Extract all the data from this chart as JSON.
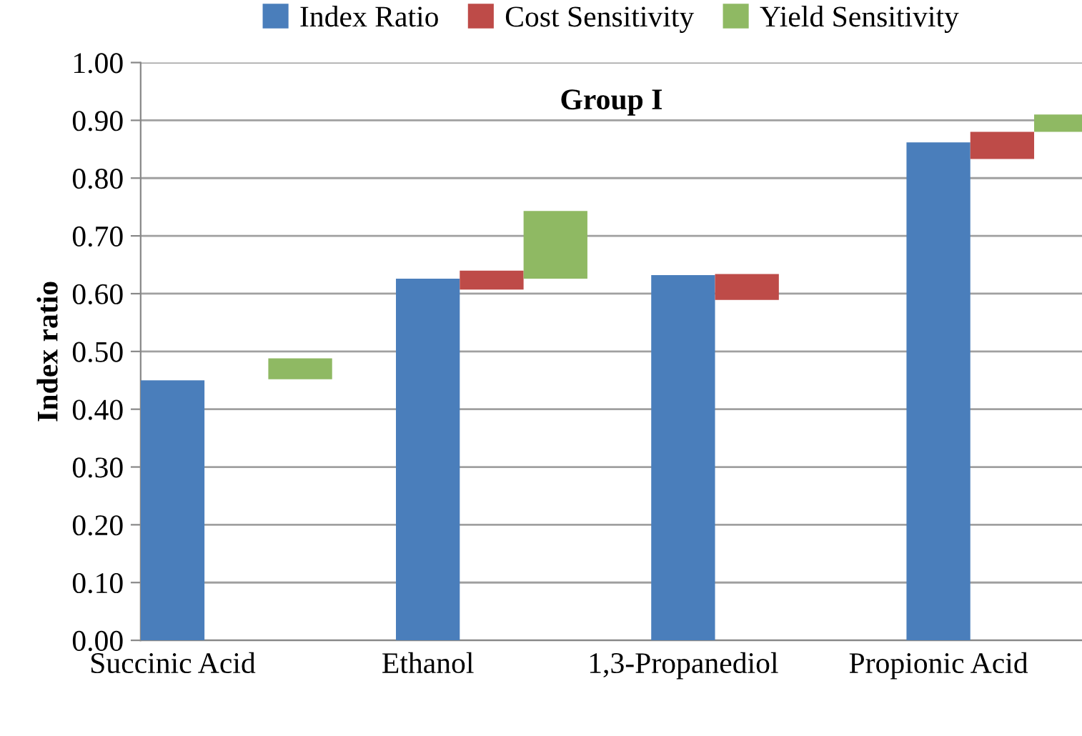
{
  "chart_data": {
    "type": "bar",
    "title": "Group I",
    "ylabel": "Index ratio",
    "categories": [
      "Succinic Acid",
      "Ethanol",
      "1,3-Propanediol",
      "Propionic Acid"
    ],
    "series": [
      {
        "name": "Index Ratio",
        "color": "#4a7ebb",
        "values": [
          0.45,
          0.626,
          0.632,
          0.862
        ]
      },
      {
        "name": "Cost Sensitivity",
        "color": "#be4b48",
        "base": [
          null,
          0.607,
          0.589,
          0.833
        ],
        "values": [
          null,
          0.033,
          0.045,
          0.047
        ]
      },
      {
        "name": "Yield Sensitivity",
        "color": "#8fb963",
        "base": [
          0.452,
          0.626,
          null,
          0.88
        ],
        "values": [
          0.036,
          0.117,
          null,
          0.03
        ]
      }
    ],
    "ylim": [
      0,
      1
    ],
    "yticks": [
      {
        "value": 0,
        "label": "0.00"
      },
      {
        "value": 0.1,
        "label": "0.10"
      },
      {
        "value": 0.2,
        "label": "0.20"
      },
      {
        "value": 0.3,
        "label": "0.30"
      },
      {
        "value": 0.4,
        "label": "0.40"
      },
      {
        "value": 0.5,
        "label": "0.50"
      },
      {
        "value": 0.6,
        "label": "0.60"
      },
      {
        "value": 0.7,
        "label": "0.70"
      },
      {
        "value": 0.8,
        "label": "0.80"
      },
      {
        "value": 0.9,
        "label": "0.90"
      },
      {
        "value": 1,
        "label": "1.00"
      }
    ],
    "grid": "y",
    "legend": "top"
  }
}
